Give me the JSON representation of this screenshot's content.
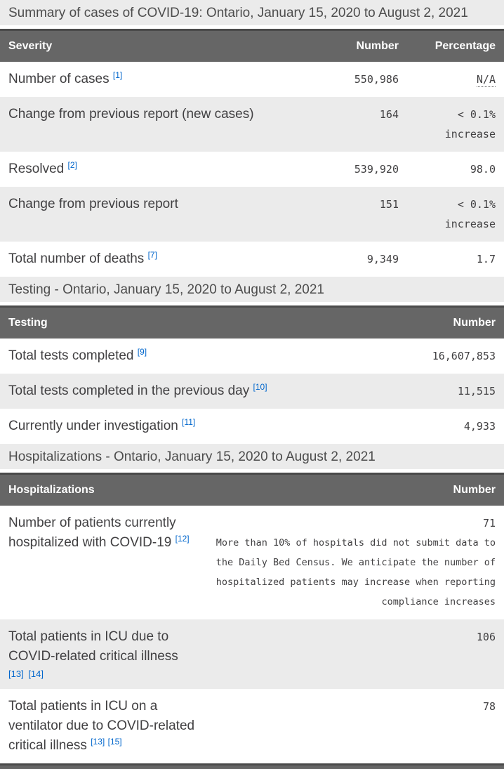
{
  "page_title": "Summary of cases of COVID-19: Ontario, January 15, 2020 to August 2, 2021",
  "colors": {
    "table_header_bg": "#666666",
    "table_header_border": "#4a4a4a",
    "band_bg": "#ebebeb",
    "alt_row_bg": "#ebebeb",
    "body_text": "#414042",
    "header_text": "#ffffff",
    "footnote_link": "#0066cc"
  },
  "tables": [
    {
      "id": "severity",
      "section_title": "",
      "columns": [
        "Severity",
        "Number",
        "Percentage"
      ],
      "rows": [
        {
          "label": "Number of cases",
          "refs": [
            "[1]"
          ],
          "number": "550,986",
          "percentage_lines": [
            "N/A"
          ],
          "pct_abbr": true
        },
        {
          "label": "Change from previous report (new cases)",
          "refs": [],
          "number": "164",
          "percentage_lines": [
            "< 0.1%",
            "increase"
          ]
        },
        {
          "label": "Resolved",
          "refs": [
            "[2]"
          ],
          "number": "539,920",
          "percentage_lines": [
            "98.0"
          ]
        },
        {
          "label": "Change from previous report",
          "refs": [],
          "number": "151",
          "percentage_lines": [
            "< 0.1%",
            "increase"
          ]
        },
        {
          "label": "Total number of deaths",
          "refs": [
            "[7]"
          ],
          "number": "9,349",
          "percentage_lines": [
            "1.7"
          ]
        }
      ]
    },
    {
      "id": "testing",
      "section_title": "Testing - Ontario, January 15, 2020 to August 2, 2021",
      "columns": [
        "Testing",
        "Number"
      ],
      "rows": [
        {
          "label": "Total tests completed",
          "refs": [
            "[9]"
          ],
          "number": "16,607,853"
        },
        {
          "label": "Total tests completed in the previous day",
          "refs": [
            "[10]"
          ],
          "number": "11,515"
        },
        {
          "label": "Currently under investigation",
          "refs": [
            "[11]"
          ],
          "number": "4,933"
        }
      ]
    },
    {
      "id": "hospitalizations",
      "section_title": "Hospitalizations - Ontario, January 15, 2020 to August 2, 2021",
      "columns": [
        "Hospitalizations",
        "Number"
      ],
      "rows": [
        {
          "label": "Number of patients currently hospitalized with COVID-19",
          "refs": [
            "[12]"
          ],
          "number": "71",
          "note": "More than 10% of hospitals did not submit data to the Daily Bed Census. We anticipate the number of hospitalized patients may increase when reporting compliance increases"
        },
        {
          "label": "Total patients in ICU due to COVID-related critical illness",
          "refs": [
            "[13]",
            "[14]"
          ],
          "refs_own_line": true,
          "number": "106"
        },
        {
          "label": "Total patients in ICU on a ventilator due to COVID-related critical illness",
          "refs": [
            "[13]",
            "[15]"
          ],
          "number": "78"
        }
      ]
    }
  ]
}
